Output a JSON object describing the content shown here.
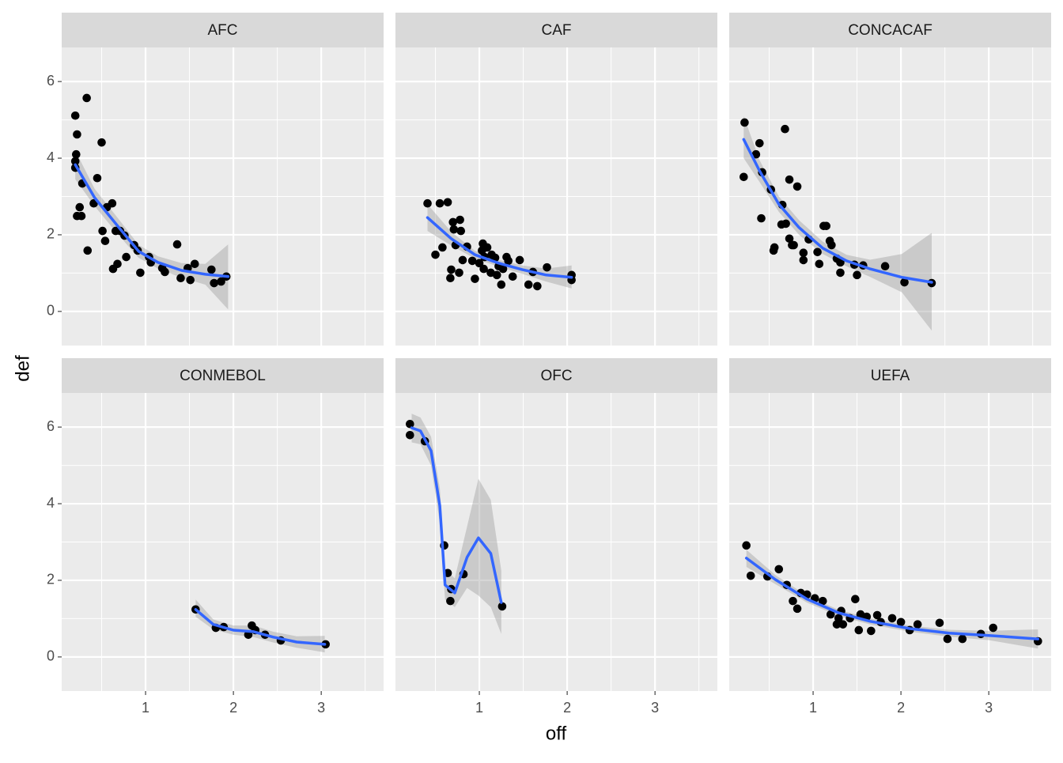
{
  "chart_data": {
    "type": "scatter",
    "x_label": "off",
    "y_label": "def",
    "xlim": [
      0.045,
      3.71
    ],
    "ylim": [
      -0.89,
      6.89
    ],
    "xticks": [
      1,
      2,
      3
    ],
    "yticks": [
      0,
      2,
      4,
      6
    ],
    "xminor": [
      0.5,
      1.5,
      2.5,
      3.5
    ],
    "yminor": [
      1,
      3,
      5
    ],
    "grid": true,
    "point_color": "#000000",
    "line_color": "#3366ff",
    "band_color": "#999999",
    "facets": [
      {
        "name": "AFC",
        "x": [
          0.2,
          0.33,
          0.22,
          0.5,
          0.21,
          0.2,
          0.2,
          0.45,
          0.28,
          0.41,
          0.62,
          0.25,
          0.56,
          0.22,
          0.27,
          0.51,
          0.66,
          0.71,
          0.76,
          0.54,
          0.87,
          0.34,
          1.36,
          0.91,
          0.78,
          1.04,
          1.06,
          0.68,
          0.63,
          1.19,
          1.48,
          1.56,
          0.94,
          1.22,
          1.75,
          1.4,
          1.51,
          1.78,
          1.92,
          1.86
        ],
        "y": [
          5.11,
          5.57,
          4.62,
          4.41,
          4.1,
          3.92,
          3.75,
          3.48,
          3.34,
          2.82,
          2.82,
          2.72,
          2.72,
          2.49,
          2.49,
          2.1,
          2.1,
          2.1,
          1.98,
          1.84,
          1.73,
          1.59,
          1.75,
          1.59,
          1.42,
          1.42,
          1.28,
          1.24,
          1.11,
          1.13,
          1.13,
          1.24,
          1.01,
          1.03,
          1.09,
          0.87,
          0.82,
          0.74,
          0.91,
          0.78
        ],
        "smooth": {
          "x": [
            0.2,
            0.42,
            0.69,
            0.92,
            1.14,
            1.41,
            1.68,
            1.94
          ],
          "y": [
            3.83,
            2.97,
            2.21,
            1.57,
            1.28,
            1.07,
            0.97,
            0.91
          ],
          "lower": [
            3.45,
            2.75,
            2.0,
            1.4,
            1.12,
            0.88,
            0.7,
            0.05
          ],
          "upper": [
            4.2,
            3.2,
            2.42,
            1.74,
            1.44,
            1.26,
            1.24,
            1.75
          ]
        }
      },
      {
        "name": "CAF",
        "x": [
          0.41,
          0.55,
          0.64,
          0.7,
          0.78,
          0.71,
          0.79,
          0.5,
          0.58,
          0.73,
          0.86,
          0.81,
          0.77,
          0.68,
          0.67,
          0.95,
          1.04,
          1.03,
          1.09,
          1.06,
          1.14,
          1.18,
          1.22,
          1.27,
          1.31,
          1.33,
          1.46,
          1.05,
          1.13,
          1.2,
          1.25,
          1.38,
          1.56,
          1.61,
          1.66,
          1.77,
          2.05,
          2.05,
          0.92,
          1.0
        ],
        "y": [
          2.82,
          2.82,
          2.85,
          2.33,
          2.39,
          2.14,
          2.1,
          1.48,
          1.67,
          1.73,
          1.69,
          1.34,
          1.01,
          1.09,
          0.87,
          0.85,
          1.77,
          1.59,
          1.67,
          1.42,
          1.48,
          1.4,
          1.18,
          1.11,
          1.42,
          1.32,
          1.34,
          1.11,
          1.01,
          0.95,
          0.7,
          0.91,
          0.7,
          1.03,
          0.66,
          1.15,
          0.95,
          0.82,
          1.32,
          1.26
        ],
        "smooth": {
          "x": [
            0.41,
            0.68,
            0.95,
            1.22,
            1.49,
            1.76,
            2.05
          ],
          "y": [
            2.45,
            1.9,
            1.48,
            1.26,
            1.09,
            0.95,
            0.89
          ],
          "lower": [
            2.1,
            1.72,
            1.38,
            1.17,
            0.98,
            0.78,
            0.6
          ],
          "upper": [
            2.8,
            2.08,
            1.58,
            1.35,
            1.2,
            1.12,
            1.2
          ]
        }
      },
      {
        "name": "CONCACAF",
        "x": [
          0.22,
          0.68,
          0.39,
          0.35,
          0.42,
          0.73,
          0.21,
          0.52,
          0.82,
          0.65,
          0.41,
          0.64,
          0.69,
          1.12,
          1.15,
          0.73,
          0.76,
          0.78,
          0.95,
          0.56,
          0.55,
          0.89,
          0.89,
          1.05,
          1.19,
          1.07,
          1.27,
          1.31,
          1.31,
          1.47,
          1.57,
          1.5,
          1.82,
          2.04,
          2.35,
          1.21
        ],
        "y": [
          4.93,
          4.76,
          4.39,
          4.1,
          3.63,
          3.44,
          3.51,
          3.18,
          3.26,
          2.78,
          2.43,
          2.27,
          2.29,
          2.23,
          2.23,
          1.9,
          1.73,
          1.73,
          1.88,
          1.67,
          1.59,
          1.53,
          1.34,
          1.55,
          1.84,
          1.24,
          1.38,
          1.28,
          1.01,
          1.22,
          1.2,
          0.95,
          1.18,
          0.76,
          0.74,
          1.73
        ],
        "smooth": {
          "x": [
            0.21,
            0.39,
            0.61,
            0.84,
            1.11,
            1.38,
            1.65,
            2.01,
            2.35
          ],
          "y": [
            4.49,
            3.67,
            2.8,
            2.19,
            1.65,
            1.32,
            1.11,
            0.89,
            0.76
          ],
          "lower": [
            4.0,
            3.38,
            2.6,
            2.0,
            1.5,
            1.18,
            0.9,
            0.5,
            -0.5
          ],
          "upper": [
            5.1,
            3.95,
            3.0,
            2.38,
            1.82,
            1.48,
            1.35,
            1.5,
            2.05
          ]
        }
      },
      {
        "name": "CONMEBOL",
        "x": [
          1.57,
          1.8,
          1.89,
          2.21,
          2.25,
          2.17,
          2.36,
          2.54,
          3.05
        ],
        "y": [
          1.24,
          0.76,
          0.78,
          0.82,
          0.7,
          0.58,
          0.58,
          0.43,
          0.33
        ],
        "smooth": {
          "x": [
            1.57,
            1.77,
            2.0,
            2.23,
            2.45,
            2.72,
            3.04
          ],
          "y": [
            1.24,
            0.85,
            0.7,
            0.66,
            0.52,
            0.39,
            0.33
          ],
          "lower": [
            1.05,
            0.72,
            0.58,
            0.52,
            0.38,
            0.24,
            0.12
          ],
          "upper": [
            1.5,
            0.98,
            0.82,
            0.82,
            0.66,
            0.54,
            0.55
          ]
        }
      },
      {
        "name": "OFC",
        "x": [
          0.21,
          0.21,
          0.38,
          0.6,
          0.64,
          0.68,
          0.67,
          0.82,
          1.26
        ],
        "y": [
          6.08,
          5.79,
          5.63,
          2.91,
          2.19,
          1.77,
          1.46,
          2.16,
          1.32
        ],
        "smooth": {
          "x": [
            0.23,
            0.33,
            0.45,
            0.55,
            0.61,
            0.72,
            0.86,
            0.99,
            1.13,
            1.25
          ],
          "y": [
            5.98,
            5.9,
            5.38,
            3.94,
            1.88,
            1.67,
            2.6,
            3.11,
            2.7,
            1.42
          ],
          "lower": [
            5.6,
            5.55,
            5.0,
            3.5,
            1.5,
            1.3,
            1.8,
            1.6,
            1.3,
            0.6
          ],
          "upper": [
            6.35,
            6.25,
            5.75,
            4.4,
            2.3,
            2.05,
            3.4,
            4.65,
            4.1,
            2.25
          ]
        }
      },
      {
        "name": "UEFA",
        "x": [
          0.24,
          0.29,
          0.61,
          0.48,
          0.7,
          0.77,
          0.86,
          0.93,
          0.82,
          1.02,
          1.11,
          1.2,
          1.32,
          1.34,
          1.27,
          1.48,
          1.42,
          1.52,
          1.54,
          1.61,
          1.66,
          1.73,
          1.77,
          1.9,
          2.0,
          2.1,
          2.19,
          2.44,
          2.53,
          2.7,
          2.91,
          3.05,
          3.56,
          1.29
        ],
        "y": [
          2.91,
          2.12,
          2.29,
          2.1,
          1.88,
          1.46,
          1.67,
          1.63,
          1.26,
          1.53,
          1.46,
          1.11,
          1.2,
          0.85,
          0.85,
          1.51,
          1.01,
          0.7,
          1.11,
          1.05,
          0.68,
          1.09,
          0.91,
          1.01,
          0.91,
          0.7,
          0.85,
          0.89,
          0.47,
          0.47,
          0.6,
          0.76,
          0.41,
          1.01
        ],
        "smooth": {
          "x": [
            0.24,
            0.57,
            0.93,
            1.29,
            1.65,
            2.1,
            2.55,
            3.0,
            3.56
          ],
          "y": [
            2.58,
            2.02,
            1.51,
            1.15,
            0.93,
            0.74,
            0.62,
            0.56,
            0.47
          ],
          "lower": [
            2.35,
            1.9,
            1.42,
            1.07,
            0.85,
            0.66,
            0.53,
            0.44,
            0.22
          ],
          "upper": [
            2.8,
            2.14,
            1.6,
            1.23,
            1.01,
            0.82,
            0.71,
            0.68,
            0.72
          ]
        }
      }
    ]
  }
}
